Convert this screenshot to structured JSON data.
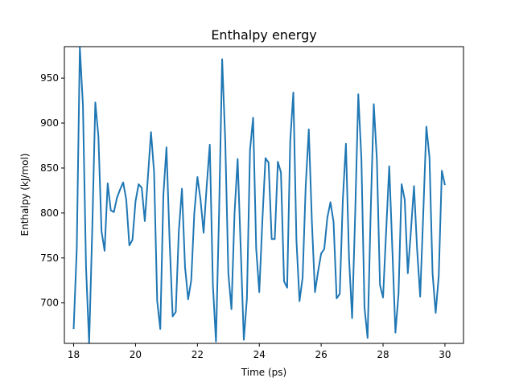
{
  "chart_data": {
    "type": "line",
    "title": "Enthalpy energy",
    "xlabel": "Time (ps)",
    "ylabel": "Enthalpy (kJ/mol)",
    "xlim": [
      17.7,
      30.6
    ],
    "ylim": [
      655,
      985
    ],
    "xticks": [
      18,
      20,
      22,
      24,
      26,
      28,
      30
    ],
    "yticks": [
      700,
      750,
      800,
      850,
      900,
      950
    ],
    "grid": false,
    "legend": "none",
    "line_color": "#1f77b4",
    "series": [
      {
        "x": [
          18.0,
          18.1,
          18.2,
          18.3,
          18.4,
          18.5,
          18.6,
          18.7,
          18.8,
          18.9,
          19.0,
          19.1,
          19.2,
          19.3,
          19.4,
          19.5,
          19.6,
          19.7,
          19.8,
          19.9,
          20.0,
          20.1,
          20.2,
          20.3,
          20.4,
          20.5,
          20.6,
          20.7,
          20.8,
          20.9,
          21.0,
          21.1,
          21.2,
          21.3,
          21.4,
          21.5,
          21.6,
          21.7,
          21.8,
          21.9,
          22.0,
          22.1,
          22.2,
          22.3,
          22.4,
          22.5,
          22.6,
          22.7,
          22.8,
          22.9,
          23.0,
          23.1,
          23.2,
          23.3,
          23.4,
          23.5,
          23.6,
          23.7,
          23.8,
          23.9,
          24.0,
          24.1,
          24.2,
          24.3,
          24.4,
          24.5,
          24.6,
          24.7,
          24.8,
          24.9,
          25.0,
          25.1,
          25.2,
          25.3,
          25.4,
          25.5,
          25.6,
          25.7,
          25.8,
          25.9,
          26.0,
          26.1,
          26.2,
          26.3,
          26.4,
          26.5,
          26.6,
          26.7,
          26.8,
          26.9,
          27.0,
          27.1,
          27.2,
          27.3,
          27.4,
          27.5,
          27.6,
          27.7,
          27.8,
          27.9,
          28.0,
          28.1,
          28.2,
          28.3,
          28.4,
          28.5,
          28.6,
          28.7,
          28.8,
          28.9,
          29.0,
          29.1,
          29.2,
          29.3,
          29.4,
          29.5,
          29.6,
          29.7,
          29.8,
          29.9,
          30.0
        ],
        "y": [
          671,
          760,
          984,
          920,
          740,
          655,
          780,
          923,
          885,
          780,
          758,
          833,
          803,
          801,
          817,
          826,
          834,
          815,
          764,
          770,
          813,
          832,
          828,
          791,
          840,
          890,
          845,
          702,
          671,
          820,
          873,
          770,
          685,
          690,
          780,
          827,
          740,
          704,
          725,
          800,
          840,
          815,
          778,
          830,
          876,
          720,
          657,
          800,
          971,
          880,
          733,
          693,
          800,
          860,
          760,
          659,
          705,
          870,
          906,
          760,
          712,
          792,
          861,
          856,
          771,
          771,
          857,
          845,
          724,
          717,
          880,
          934,
          770,
          702,
          728,
          830,
          893,
          790,
          712,
          735,
          755,
          760,
          795,
          812,
          790,
          705,
          710,
          815,
          877,
          750,
          683,
          800,
          932,
          860,
          695,
          661,
          800,
          921,
          860,
          720,
          706,
          780,
          852,
          760,
          667,
          710,
          832,
          815,
          733,
          780,
          830,
          760,
          707,
          800,
          896,
          862,
          733,
          689,
          730,
          847,
          831
        ]
      }
    ]
  }
}
